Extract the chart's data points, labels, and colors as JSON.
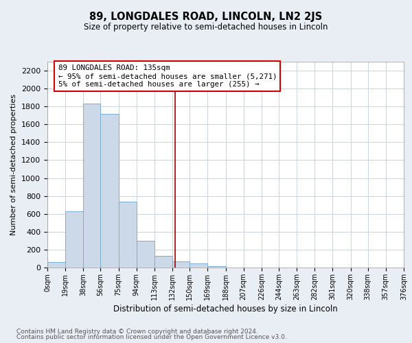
{
  "title": "89, LONGDALES ROAD, LINCOLN, LN2 2JS",
  "subtitle": "Size of property relative to semi-detached houses in Lincoln",
  "xlabel": "Distribution of semi-detached houses by size in Lincoln",
  "ylabel": "Number of semi-detached properties",
  "bar_edges": [
    0,
    19,
    38,
    56,
    75,
    94,
    113,
    132,
    150,
    169,
    188,
    207,
    226,
    244,
    263,
    282,
    301,
    320,
    338,
    357,
    376
  ],
  "bar_heights": [
    60,
    630,
    1830,
    1720,
    735,
    300,
    130,
    70,
    45,
    15,
    0,
    0,
    0,
    0,
    0,
    0,
    0,
    0,
    0,
    0
  ],
  "bar_color": "#ccd9e8",
  "bar_edge_color": "#7aaed0",
  "property_line_x": 135,
  "property_line_color": "#990000",
  "annotation_line1": "89 LONGDALES ROAD: 135sqm",
  "annotation_line2": "← 95% of semi-detached houses are smaller (5,271)",
  "annotation_line3": "5% of semi-detached houses are larger (255) →",
  "annotation_box_edge_color": "#cc0000",
  "ylim": [
    0,
    2300
  ],
  "yticks": [
    0,
    200,
    400,
    600,
    800,
    1000,
    1200,
    1400,
    1600,
    1800,
    2000,
    2200
  ],
  "xtick_labels": [
    "0sqm",
    "19sqm",
    "38sqm",
    "56sqm",
    "75sqm",
    "94sqm",
    "113sqm",
    "132sqm",
    "150sqm",
    "169sqm",
    "188sqm",
    "207sqm",
    "226sqm",
    "244sqm",
    "263sqm",
    "282sqm",
    "301sqm",
    "320sqm",
    "338sqm",
    "357sqm",
    "376sqm"
  ],
  "background_color": "#e8eef4",
  "plot_bg_color": "#ffffff",
  "grid_color": "#c8d4de",
  "footer_line1": "Contains HM Land Registry data © Crown copyright and database right 2024.",
  "footer_line2": "Contains public sector information licensed under the Open Government Licence v3.0."
}
